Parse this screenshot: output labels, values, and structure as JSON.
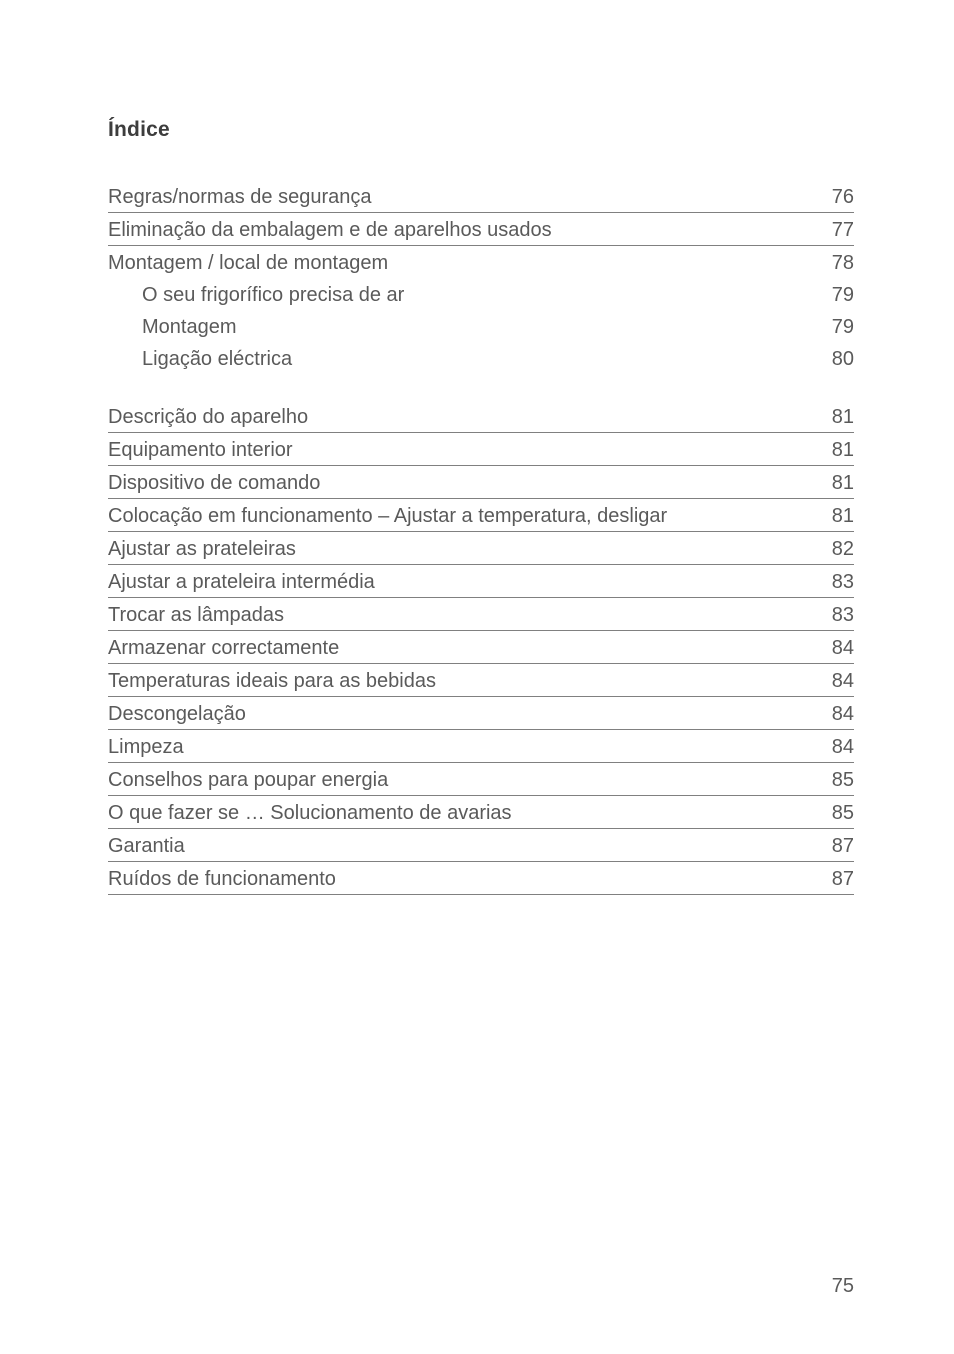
{
  "title": "Índice",
  "page_number": "75",
  "colors": {
    "background": "#ffffff",
    "text": "#5a5a5a",
    "title": "#3d3d3d",
    "rule": "#808080"
  },
  "typography": {
    "title_fontsize_pt": 16,
    "body_fontsize_pt": 15,
    "title_weight": 600,
    "body_weight": 300,
    "font_family": "Helvetica Neue"
  },
  "entries": [
    {
      "label": "Regras/normas de segurança",
      "page": "76",
      "rule": true,
      "indent": false,
      "gap_before": false
    },
    {
      "label": "Eliminação da embalagem e de aparelhos usados",
      "page": "77",
      "rule": true,
      "indent": false,
      "gap_before": false
    },
    {
      "label": "Montagem / local de montagem",
      "page": "78",
      "rule": false,
      "indent": false,
      "gap_before": false
    },
    {
      "label": "O seu frigorífico precisa de ar",
      "page": "79",
      "rule": false,
      "indent": true,
      "gap_before": false
    },
    {
      "label": "Montagem",
      "page": "79",
      "rule": false,
      "indent": true,
      "gap_before": false
    },
    {
      "label": "Ligação eléctrica",
      "page": "80",
      "rule": false,
      "indent": true,
      "gap_before": false
    },
    {
      "label": "Descrição do aparelho",
      "page": "81",
      "rule": true,
      "indent": false,
      "gap_before": true
    },
    {
      "label": "Equipamento interior",
      "page": "81",
      "rule": true,
      "indent": false,
      "gap_before": false
    },
    {
      "label": "Dispositivo de comando",
      "page": "81",
      "rule": true,
      "indent": false,
      "gap_before": false
    },
    {
      "label": "Colocação em funcionamento – Ajustar a temperatura, desligar",
      "page": "81",
      "rule": true,
      "indent": false,
      "gap_before": false
    },
    {
      "label": "Ajustar as prateleiras",
      "page": "82",
      "rule": true,
      "indent": false,
      "gap_before": false
    },
    {
      "label": "Ajustar a prateleira intermédia",
      "page": "83",
      "rule": true,
      "indent": false,
      "gap_before": false
    },
    {
      "label": "Trocar as lâmpadas",
      "page": "83",
      "rule": true,
      "indent": false,
      "gap_before": false
    },
    {
      "label": "Armazenar correctamente",
      "page": "84",
      "rule": true,
      "indent": false,
      "gap_before": false
    },
    {
      "label": "Temperaturas ideais para as bebidas",
      "page": "84",
      "rule": true,
      "indent": false,
      "gap_before": false
    },
    {
      "label": "Descongelação",
      "page": "84",
      "rule": true,
      "indent": false,
      "gap_before": false
    },
    {
      "label": "Limpeza",
      "page": "84",
      "rule": true,
      "indent": false,
      "gap_before": false
    },
    {
      "label": "Conselhos para poupar energia",
      "page": "85",
      "rule": true,
      "indent": false,
      "gap_before": false
    },
    {
      "label": "O que fazer se … Solucionamento de avarias",
      "page": "85",
      "rule": true,
      "indent": false,
      "gap_before": false
    },
    {
      "label": "Garantia",
      "page": "87",
      "rule": true,
      "indent": false,
      "gap_before": false
    },
    {
      "label": "Ruídos de funcionamento",
      "page": "87",
      "rule": true,
      "indent": false,
      "gap_before": false
    }
  ]
}
